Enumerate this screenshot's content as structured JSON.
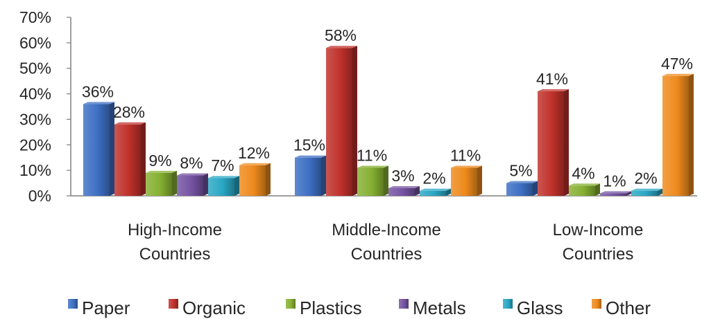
{
  "chart_data": {
    "type": "bar",
    "categories": [
      [
        "High-Income",
        "Countries"
      ],
      [
        "Middle-Income",
        "Countries"
      ],
      [
        "Low-Income",
        "Countries"
      ]
    ],
    "series": [
      {
        "name": "Paper",
        "values": [
          36,
          15,
          5
        ],
        "labels": [
          "36%",
          "15%",
          "5%"
        ],
        "color": "#3d6fc4"
      },
      {
        "name": "Organic",
        "values": [
          28,
          58,
          41
        ],
        "labels": [
          "28%",
          "58%",
          "41%"
        ],
        "color": "#c0312b"
      },
      {
        "name": "Plastics",
        "values": [
          9,
          11,
          4
        ],
        "labels": [
          "9%",
          "11%",
          "4%"
        ],
        "color": "#86b032"
      },
      {
        "name": "Metals",
        "values": [
          8,
          3,
          1
        ],
        "labels": [
          "8%",
          "3%",
          "1%"
        ],
        "color": "#7553a2"
      },
      {
        "name": "Glass",
        "values": [
          7,
          2,
          2
        ],
        "labels": [
          "7%",
          "2%",
          "2%"
        ],
        "color": "#2aa7c4"
      },
      {
        "name": "Other",
        "values": [
          12,
          11,
          47
        ],
        "labels": [
          "12%",
          "11%",
          "47%"
        ],
        "color": "#ee8a1c"
      }
    ],
    "yaxis": {
      "ticks": [
        0,
        10,
        20,
        30,
        40,
        50,
        60,
        70
      ],
      "tick_labels": [
        "0%",
        "10%",
        "20%",
        "30%",
        "40%",
        "50%",
        "60%",
        "70%"
      ],
      "ylim": [
        0,
        70
      ]
    },
    "grid": false,
    "legend_position": "bottom",
    "title": "",
    "xlabel": "",
    "ylabel": ""
  }
}
